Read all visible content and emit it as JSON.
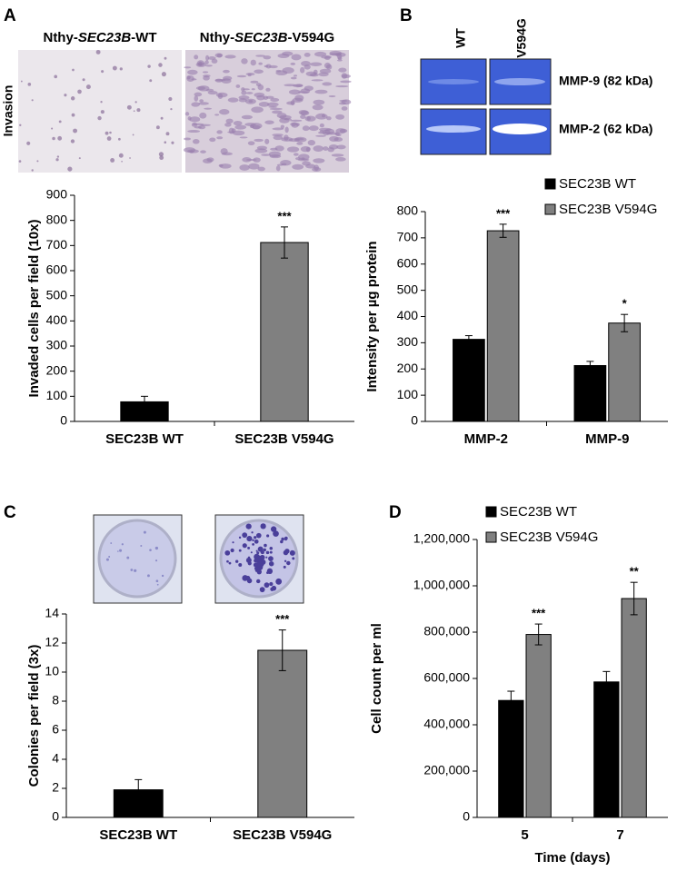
{
  "figure": {
    "panel_labels": [
      "A",
      "B",
      "C",
      "D"
    ],
    "invasion": {
      "row_label": "Invasion",
      "columns": [
        [
          "Nthy-",
          "SEC23B",
          "-WT"
        ],
        [
          "Nthy-",
          "SEC23B",
          "-V594G"
        ]
      ]
    },
    "gel": {
      "lanes": [
        "WT",
        "V594G"
      ],
      "bands": [
        "MMP-9 (82 kDa)",
        "MMP-2 (62 kDa)"
      ]
    }
  },
  "chart_data": [
    {
      "type": "bar",
      "ylabel": "Invaded cells per field (10x)",
      "categories": [
        "SEC23B WT",
        "SEC23B V594G"
      ],
      "values": [
        78,
        712
      ],
      "errors": [
        22,
        62
      ],
      "annotations": [
        null,
        "***"
      ],
      "colors": [
        "#000000",
        "#808080"
      ],
      "ylim": [
        0,
        900
      ],
      "yticks": [
        0,
        100,
        200,
        300,
        400,
        500,
        600,
        700,
        800,
        900
      ]
    },
    {
      "type": "bar",
      "ylabel": "Intensity per µg protein",
      "legend": "upper right",
      "categories": [
        "MMP-2",
        "MMP-9"
      ],
      "series": [
        {
          "name": "SEC23B WT",
          "color": "#000000",
          "values": [
            313,
            213
          ],
          "errors": [
            14,
            16
          ],
          "annotations": [
            null,
            null
          ]
        },
        {
          "name": "SEC23B V594G",
          "color": "#808080",
          "values": [
            727,
            375
          ],
          "errors": [
            25,
            33
          ],
          "annotations": [
            "***",
            "*"
          ]
        }
      ],
      "ylim": [
        0,
        800
      ],
      "yticks": [
        0,
        100,
        200,
        300,
        400,
        500,
        600,
        700,
        800
      ]
    },
    {
      "type": "bar",
      "ylabel": "Colonies per field (3x)",
      "categories": [
        "SEC23B WT",
        "SEC23B V594G"
      ],
      "values": [
        1.9,
        11.5
      ],
      "errors": [
        0.7,
        1.4
      ],
      "annotations": [
        null,
        "***"
      ],
      "colors": [
        "#000000",
        "#808080"
      ],
      "ylim": [
        0,
        14
      ],
      "yticks": [
        0,
        2,
        4,
        6,
        8,
        10,
        12,
        14
      ]
    },
    {
      "type": "bar",
      "ylabel": "Cell count per ml",
      "xlabel": "Time (days)",
      "legend": "upper left",
      "categories": [
        "5",
        "7"
      ],
      "series": [
        {
          "name": "SEC23B WT",
          "color": "#000000",
          "values": [
            505000,
            585000
          ],
          "errors": [
            40000,
            45000
          ],
          "annotations": [
            null,
            null
          ]
        },
        {
          "name": "SEC23B V594G",
          "color": "#808080",
          "values": [
            790000,
            945000
          ],
          "errors": [
            45000,
            70000
          ],
          "annotations": [
            "***",
            "**"
          ]
        }
      ],
      "ylim": [
        0,
        1200000
      ],
      "yticks": [
        0,
        {
          "value": 200000,
          "label": "200,000"
        },
        {
          "value": 400000,
          "label": "400,000"
        },
        {
          "value": 600000,
          "label": "600,000"
        },
        {
          "value": 800000,
          "label": "800,000"
        },
        {
          "value": 1000000,
          "label": "1,000,000"
        },
        {
          "value": 1200000,
          "label": "1,200,000"
        }
      ]
    }
  ]
}
